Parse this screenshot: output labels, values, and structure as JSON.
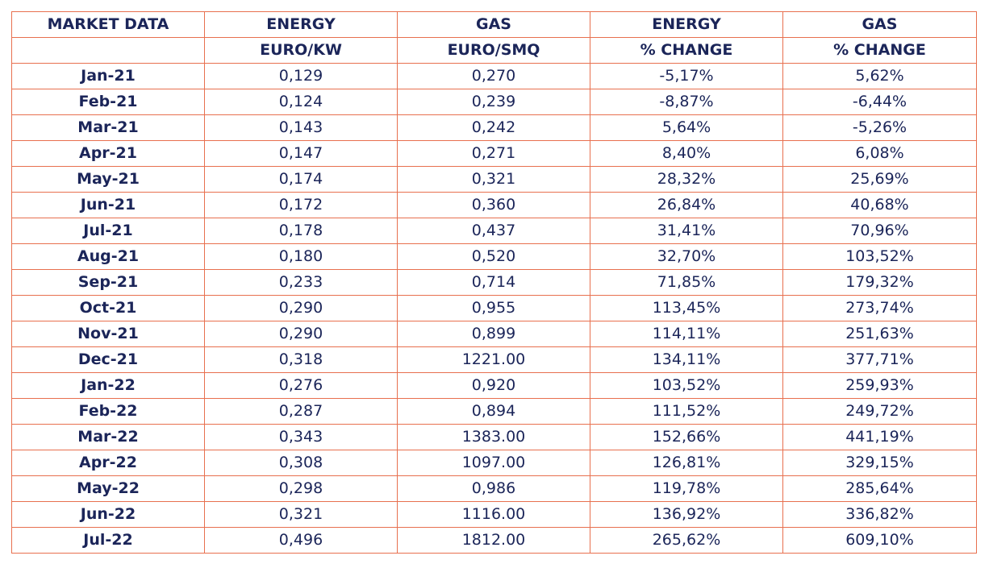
{
  "header": {
    "row1": [
      "MARKET DATA",
      "ENERGY",
      "GAS",
      "ENERGY",
      "GAS"
    ],
    "row2": [
      "",
      "EURO/KW",
      "EURO/SMQ",
      "% CHANGE",
      "% CHANGE"
    ]
  },
  "rows": [
    {
      "month": "Jan-21",
      "energy": "0,129",
      "gas": "0,270",
      "energy_change": "-5,17%",
      "gas_change": "5,62%"
    },
    {
      "month": "Feb-21",
      "energy": "0,124",
      "gas": "0,239",
      "energy_change": "-8,87%",
      "gas_change": "-6,44%"
    },
    {
      "month": "Mar-21",
      "energy": "0,143",
      "gas": "0,242",
      "energy_change": "5,64%",
      "gas_change": "-5,26%"
    },
    {
      "month": "Apr-21",
      "energy": "0,147",
      "gas": "0,271",
      "energy_change": "8,40%",
      "gas_change": "6,08%"
    },
    {
      "month": "May-21",
      "energy": "0,174",
      "gas": "0,321",
      "energy_change": "28,32%",
      "gas_change": "25,69%"
    },
    {
      "month": "Jun-21",
      "energy": "0,172",
      "gas": "0,360",
      "energy_change": "26,84%",
      "gas_change": "40,68%"
    },
    {
      "month": "Jul-21",
      "energy": "0,178",
      "gas": "0,437",
      "energy_change": "31,41%",
      "gas_change": "70,96%"
    },
    {
      "month": "Aug-21",
      "energy": "0,180",
      "gas": "0,520",
      "energy_change": "32,70%",
      "gas_change": "103,52%"
    },
    {
      "month": "Sep-21",
      "energy": "0,233",
      "gas": "0,714",
      "energy_change": "71,85%",
      "gas_change": "179,32%"
    },
    {
      "month": "Oct-21",
      "energy": "0,290",
      "gas": "0,955",
      "energy_change": "113,45%",
      "gas_change": "273,74%"
    },
    {
      "month": "Nov-21",
      "energy": "0,290",
      "gas": "0,899",
      "energy_change": "114,11%",
      "gas_change": "251,63%"
    },
    {
      "month": "Dec-21",
      "energy": "0,318",
      "gas": "1221.00",
      "energy_change": "134,11%",
      "gas_change": "377,71%"
    },
    {
      "month": "Jan-22",
      "energy": "0,276",
      "gas": "0,920",
      "energy_change": "103,52%",
      "gas_change": "259,93%"
    },
    {
      "month": "Feb-22",
      "energy": "0,287",
      "gas": "0,894",
      "energy_change": "111,52%",
      "gas_change": "249,72%"
    },
    {
      "month": "Mar-22",
      "energy": "0,343",
      "gas": "1383.00",
      "energy_change": "152,66%",
      "gas_change": "441,19%"
    },
    {
      "month": "Apr-22",
      "energy": "0,308",
      "gas": "1097.00",
      "energy_change": "126,81%",
      "gas_change": "329,15%"
    },
    {
      "month": "May-22",
      "energy": "0,298",
      "gas": "0,986",
      "energy_change": "119,78%",
      "gas_change": "285,64%"
    },
    {
      "month": "Jun-22",
      "energy": "0,321",
      "gas": "1116.00",
      "energy_change": "136,92%",
      "gas_change": "336,82%"
    },
    {
      "month": "Jul-22",
      "energy": "0,496",
      "gas": "1812.00",
      "energy_change": "265,62%",
      "gas_change": "609,10%"
    }
  ],
  "colors": {
    "border": "#e8704f",
    "text": "#1b2559"
  }
}
